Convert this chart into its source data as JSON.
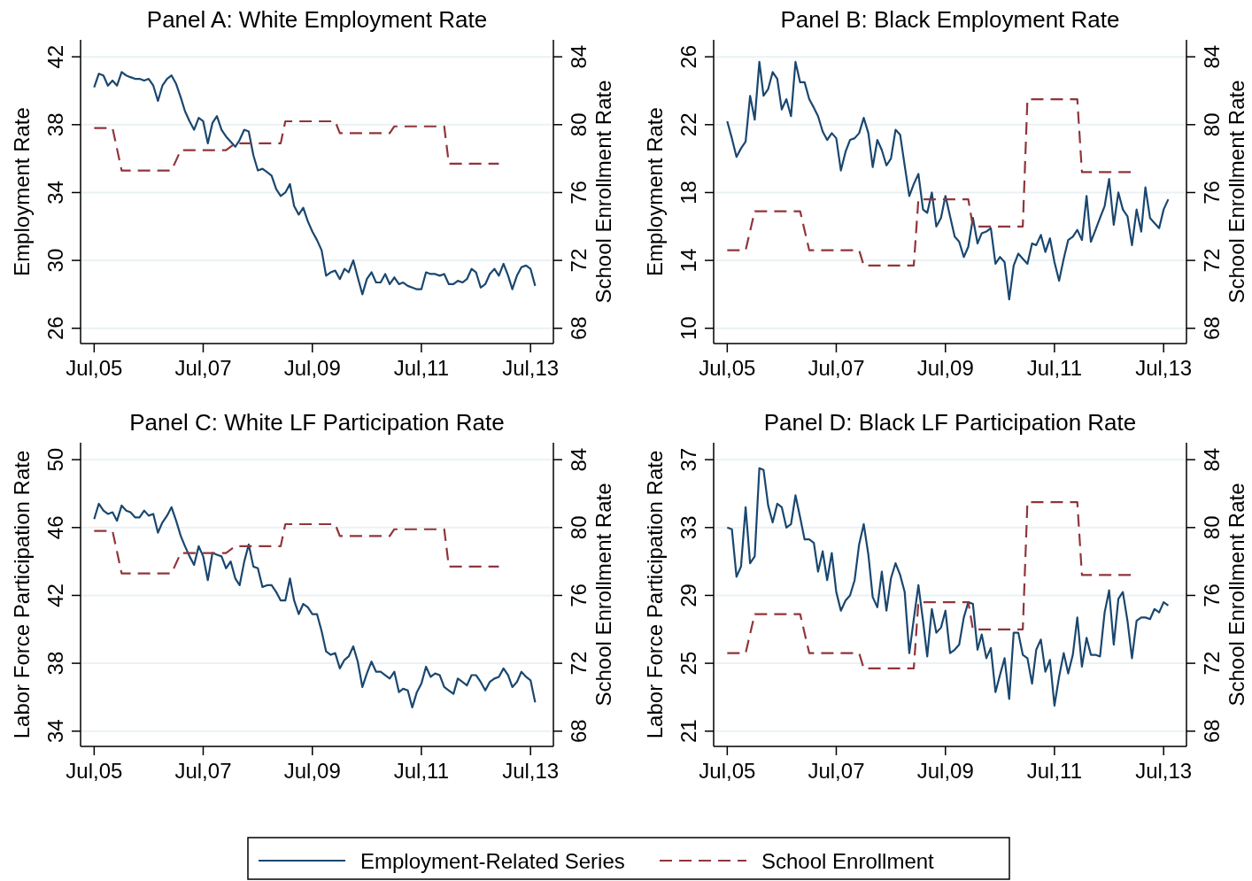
{
  "chart_data": [
    {
      "type": "line",
      "title": "Panel A: White Employment Rate",
      "ylabel": "Employment Rate",
      "y2label": "School Enrollment Rate",
      "xlim": [
        "2005-04",
        "2013-12"
      ],
      "xticks": [
        {
          "value": "2005-07",
          "label": "Jul,05"
        },
        {
          "value": "2007-07",
          "label": "Jul,07"
        },
        {
          "value": "2009-07",
          "label": "Jul,09"
        },
        {
          "value": "2011-07",
          "label": "Jul,11"
        },
        {
          "value": "2013-07",
          "label": "Jul,13"
        }
      ],
      "ylim": [
        25.1,
        43
      ],
      "yticks": [
        26,
        30,
        34,
        38,
        42
      ],
      "y2lim": [
        67.1,
        85
      ],
      "y2ticks": [
        68,
        72,
        76,
        80,
        84
      ],
      "grid": "y",
      "legend": "bottom",
      "x": [
        "2005-07",
        "2005-08",
        "2005-09",
        "2005-10",
        "2005-11",
        "2005-12",
        "2006-01",
        "2006-02",
        "2006-03",
        "2006-04",
        "2006-05",
        "2006-06",
        "2006-07",
        "2006-08",
        "2006-09",
        "2006-10",
        "2006-11",
        "2006-12",
        "2007-01",
        "2007-02",
        "2007-03",
        "2007-04",
        "2007-05",
        "2007-06",
        "2007-07",
        "2007-08",
        "2007-09",
        "2007-10",
        "2007-11",
        "2007-12",
        "2008-01",
        "2008-02",
        "2008-03",
        "2008-04",
        "2008-05",
        "2008-06",
        "2008-07",
        "2008-08",
        "2008-09",
        "2008-10",
        "2008-11",
        "2008-12",
        "2009-01",
        "2009-02",
        "2009-03",
        "2009-04",
        "2009-05",
        "2009-06",
        "2009-07",
        "2009-08",
        "2009-09",
        "2009-10",
        "2009-11",
        "2009-12",
        "2010-01",
        "2010-02",
        "2010-03",
        "2010-04",
        "2010-05",
        "2010-06",
        "2010-07",
        "2010-08",
        "2010-09",
        "2010-10",
        "2010-11",
        "2010-12",
        "2011-01",
        "2011-02",
        "2011-03",
        "2011-04",
        "2011-05",
        "2011-06",
        "2011-07",
        "2011-08",
        "2011-09",
        "2011-10",
        "2011-11",
        "2011-12",
        "2012-01",
        "2012-02",
        "2012-03",
        "2012-04",
        "2012-05",
        "2012-06",
        "2012-07",
        "2012-08",
        "2012-09",
        "2012-10",
        "2012-11",
        "2012-12",
        "2013-01",
        "2013-02",
        "2013-03",
        "2013-04",
        "2013-05",
        "2013-06",
        "2013-07",
        "2013-08"
      ],
      "series": [
        {
          "name": "Employment-Related Series",
          "color": "#1a476f",
          "values": [
            40.2,
            41.0,
            40.9,
            40.3,
            40.6,
            40.3,
            41.1,
            40.9,
            40.8,
            40.7,
            40.7,
            40.6,
            40.7,
            40.3,
            39.4,
            40.3,
            40.7,
            40.9,
            40.4,
            39.6,
            38.8,
            38.2,
            37.7,
            38.4,
            38.2,
            36.9,
            38.1,
            38.5,
            37.7,
            37.3,
            37.0,
            36.7,
            37.1,
            37.7,
            37.6,
            36.2,
            35.3,
            35.4,
            35.2,
            35.0,
            34.2,
            33.8,
            34.0,
            34.5,
            33.2,
            32.7,
            33.1,
            32.3,
            31.7,
            31.2,
            30.6,
            29.1,
            29.3,
            29.4,
            28.9,
            29.5,
            29.3,
            30.0,
            29.0,
            28.0,
            28.9,
            29.3,
            28.7,
            28.7,
            29.2,
            28.6,
            29.0,
            28.6,
            28.7,
            28.5,
            28.4,
            28.3,
            28.3,
            29.3,
            29.2,
            29.2,
            29.1,
            29.2,
            28.6,
            28.6,
            28.8,
            28.7,
            28.9,
            29.5,
            29.3,
            28.4,
            28.6,
            29.2,
            29.5,
            29.1,
            29.8,
            29.1,
            28.3,
            29.1,
            29.6,
            29.7,
            29.5,
            28.5
          ]
        },
        {
          "name": "School Enrollment",
          "color": "#90353b",
          "axis": "y2",
          "line_style": "dashed",
          "x": [
            "2005-07",
            "2005-11",
            "2006-01",
            "2006-12",
            "2007-02",
            "2007-12",
            "2008-02",
            "2008-12",
            "2009-01",
            "2009-12",
            "2010-01",
            "2010-12",
            "2011-01",
            "2011-12",
            "2012-01",
            "2012-12"
          ],
          "values": [
            79.8,
            79.8,
            77.3,
            77.3,
            78.5,
            78.5,
            78.9,
            78.9,
            80.2,
            80.2,
            79.5,
            79.5,
            79.9,
            79.9,
            77.7,
            77.7
          ]
        }
      ]
    },
    {
      "type": "line",
      "title": "Panel B: Black Employment Rate",
      "ylabel": "Employment Rate",
      "y2label": "School Enrollment Rate",
      "xlim": [
        "2005-04",
        "2013-12"
      ],
      "xticks": [
        {
          "value": "2005-07",
          "label": "Jul,05"
        },
        {
          "value": "2007-07",
          "label": "Jul,07"
        },
        {
          "value": "2009-07",
          "label": "Jul,09"
        },
        {
          "value": "2011-07",
          "label": "Jul,11"
        },
        {
          "value": "2013-07",
          "label": "Jul,13"
        }
      ],
      "ylim": [
        9.1,
        27
      ],
      "yticks": [
        10,
        14,
        18,
        22,
        26
      ],
      "y2lim": [
        67.1,
        85
      ],
      "y2ticks": [
        68,
        72,
        76,
        80,
        84
      ],
      "grid": "y",
      "x": [
        "2005-07",
        "2005-08",
        "2005-09",
        "2005-10",
        "2005-11",
        "2005-12",
        "2006-01",
        "2006-02",
        "2006-03",
        "2006-04",
        "2006-05",
        "2006-06",
        "2006-07",
        "2006-08",
        "2006-09",
        "2006-10",
        "2006-11",
        "2006-12",
        "2007-01",
        "2007-02",
        "2007-03",
        "2007-04",
        "2007-05",
        "2007-06",
        "2007-07",
        "2007-08",
        "2007-09",
        "2007-10",
        "2007-11",
        "2007-12",
        "2008-01",
        "2008-02",
        "2008-03",
        "2008-04",
        "2008-05",
        "2008-06",
        "2008-07",
        "2008-08",
        "2008-09",
        "2008-10",
        "2008-11",
        "2008-12",
        "2009-01",
        "2009-02",
        "2009-03",
        "2009-04",
        "2009-05",
        "2009-06",
        "2009-07",
        "2009-08",
        "2009-09",
        "2009-10",
        "2009-11",
        "2009-12",
        "2010-01",
        "2010-02",
        "2010-03",
        "2010-04",
        "2010-05",
        "2010-06",
        "2010-07",
        "2010-08",
        "2010-09",
        "2010-10",
        "2010-11",
        "2010-12",
        "2011-01",
        "2011-02",
        "2011-03",
        "2011-04",
        "2011-05",
        "2011-06",
        "2011-07",
        "2011-08",
        "2011-09",
        "2011-10",
        "2011-11",
        "2011-12",
        "2012-01",
        "2012-02",
        "2012-03",
        "2012-04",
        "2012-05",
        "2012-06",
        "2012-07",
        "2012-08",
        "2012-09",
        "2012-10",
        "2012-11",
        "2012-12",
        "2013-01",
        "2013-02",
        "2013-03",
        "2013-04",
        "2013-05",
        "2013-06",
        "2013-07",
        "2013-08"
      ],
      "series": [
        {
          "color": "#1a476f",
          "values": [
            22.2,
            21.2,
            20.1,
            20.6,
            21.0,
            23.7,
            22.3,
            25.7,
            23.7,
            24.1,
            25.1,
            24.7,
            22.9,
            23.5,
            22.5,
            25.7,
            24.5,
            24.5,
            23.5,
            23.0,
            22.5,
            21.6,
            21.1,
            21.5,
            21.2,
            19.3,
            20.4,
            21.1,
            21.2,
            21.5,
            22.4,
            21.5,
            19.5,
            21.1,
            20.5,
            19.6,
            20.0,
            21.7,
            21.4,
            19.6,
            17.8,
            18.5,
            19.1,
            17.0,
            16.8,
            18.0,
            16.0,
            16.5,
            17.8,
            16.6,
            15.4,
            15.1,
            14.2,
            14.8,
            16.5,
            15.0,
            15.6,
            15.7,
            15.9,
            13.8,
            14.2,
            13.9,
            11.7,
            13.7,
            14.4,
            14.1,
            13.8,
            15.0,
            14.9,
            15.5,
            14.5,
            15.3,
            13.9,
            12.8,
            14.1,
            15.2,
            15.4,
            15.8,
            15.2,
            17.8,
            15.1,
            15.8,
            16.5,
            17.2,
            18.8,
            16.1,
            18.0,
            17.0,
            16.6,
            14.9,
            17.0,
            15.7,
            18.3,
            16.5,
            16.2,
            15.9,
            17.0,
            17.6
          ]
        },
        {
          "color": "#90353b",
          "axis": "y2",
          "line_style": "dashed",
          "x": [
            "2005-07",
            "2005-11",
            "2006-01",
            "2006-11",
            "2007-01",
            "2007-12",
            "2008-01",
            "2008-12",
            "2009-01",
            "2009-12",
            "2010-01",
            "2010-12",
            "2011-01",
            "2011-12",
            "2012-01",
            "2012-12"
          ],
          "values": [
            72.6,
            72.6,
            74.9,
            74.9,
            72.6,
            72.6,
            71.7,
            71.7,
            75.6,
            75.6,
            74.0,
            74.0,
            81.5,
            81.5,
            77.2,
            77.2
          ]
        }
      ]
    },
    {
      "type": "line",
      "title": "Panel C: White LF Participation Rate",
      "ylabel": "Labor Force Participation Rate",
      "y2label": "School Enrollment Rate",
      "xlim": [
        "2005-04",
        "2013-12"
      ],
      "xticks": [
        {
          "value": "2005-07",
          "label": "Jul,05"
        },
        {
          "value": "2007-07",
          "label": "Jul,07"
        },
        {
          "value": "2009-07",
          "label": "Jul,09"
        },
        {
          "value": "2011-07",
          "label": "Jul,11"
        },
        {
          "value": "2013-07",
          "label": "Jul,13"
        }
      ],
      "ylim": [
        33.1,
        51
      ],
      "yticks": [
        34,
        38,
        42,
        46,
        50
      ],
      "y2lim": [
        67.1,
        85
      ],
      "y2ticks": [
        68,
        72,
        76,
        80,
        84
      ],
      "grid": "y",
      "x": [
        "2005-07",
        "2005-08",
        "2005-09",
        "2005-10",
        "2005-11",
        "2005-12",
        "2006-01",
        "2006-02",
        "2006-03",
        "2006-04",
        "2006-05",
        "2006-06",
        "2006-07",
        "2006-08",
        "2006-09",
        "2006-10",
        "2006-11",
        "2006-12",
        "2007-01",
        "2007-02",
        "2007-03",
        "2007-04",
        "2007-05",
        "2007-06",
        "2007-07",
        "2007-08",
        "2007-09",
        "2007-10",
        "2007-11",
        "2007-12",
        "2008-01",
        "2008-02",
        "2008-03",
        "2008-04",
        "2008-05",
        "2008-06",
        "2008-07",
        "2008-08",
        "2008-09",
        "2008-10",
        "2008-11",
        "2008-12",
        "2009-01",
        "2009-02",
        "2009-03",
        "2009-04",
        "2009-05",
        "2009-06",
        "2009-07",
        "2009-08",
        "2009-09",
        "2009-10",
        "2009-11",
        "2009-12",
        "2010-01",
        "2010-02",
        "2010-03",
        "2010-04",
        "2010-05",
        "2010-06",
        "2010-07",
        "2010-08",
        "2010-09",
        "2010-10",
        "2010-11",
        "2010-12",
        "2011-01",
        "2011-02",
        "2011-03",
        "2011-04",
        "2011-05",
        "2011-06",
        "2011-07",
        "2011-08",
        "2011-09",
        "2011-10",
        "2011-11",
        "2011-12",
        "2012-01",
        "2012-02",
        "2012-03",
        "2012-04",
        "2012-05",
        "2012-06",
        "2012-07",
        "2012-08",
        "2012-09",
        "2012-10",
        "2012-11",
        "2012-12",
        "2013-01",
        "2013-02",
        "2013-03",
        "2013-04",
        "2013-05",
        "2013-06",
        "2013-07",
        "2013-08"
      ],
      "series": [
        {
          "color": "#1a476f",
          "values": [
            46.5,
            47.4,
            47.0,
            46.8,
            46.9,
            46.4,
            47.3,
            47.0,
            46.9,
            46.6,
            46.6,
            47.0,
            46.7,
            46.8,
            45.7,
            46.3,
            46.7,
            47.2,
            46.4,
            45.5,
            44.9,
            44.3,
            43.8,
            44.9,
            44.3,
            42.9,
            44.5,
            44.4,
            44.3,
            43.6,
            44.0,
            43.0,
            42.6,
            44.0,
            45.0,
            43.7,
            43.6,
            42.5,
            42.6,
            42.6,
            42.2,
            41.7,
            41.7,
            43.0,
            41.7,
            40.9,
            41.5,
            41.3,
            40.9,
            40.9,
            39.9,
            38.7,
            38.5,
            38.6,
            37.7,
            38.2,
            38.4,
            39.0,
            38.1,
            36.6,
            37.4,
            38.1,
            37.5,
            37.5,
            37.3,
            37.1,
            37.5,
            36.3,
            36.5,
            36.4,
            35.4,
            36.3,
            36.8,
            37.8,
            37.2,
            37.4,
            37.3,
            36.6,
            36.4,
            36.2,
            37.1,
            36.9,
            36.7,
            37.3,
            37.3,
            36.9,
            36.4,
            36.9,
            37.1,
            37.2,
            37.7,
            37.3,
            36.6,
            36.9,
            37.5,
            37.2,
            37.0,
            35.7
          ]
        },
        {
          "color": "#90353b",
          "axis": "y2",
          "line_style": "dashed",
          "x": [
            "2005-07",
            "2005-11",
            "2006-01",
            "2006-12",
            "2007-02",
            "2007-12",
            "2008-02",
            "2008-12",
            "2009-01",
            "2009-12",
            "2010-01",
            "2010-12",
            "2011-01",
            "2011-12",
            "2012-01",
            "2012-12"
          ],
          "values": [
            79.8,
            79.8,
            77.3,
            77.3,
            78.5,
            78.5,
            78.9,
            78.9,
            80.2,
            80.2,
            79.5,
            79.5,
            79.9,
            79.9,
            77.7,
            77.7
          ]
        }
      ]
    },
    {
      "type": "line",
      "title": "Panel D: Black LF Participation Rate",
      "ylabel": "Labor Force Participation Rate",
      "y2label": "School Enrollment Rate",
      "xlim": [
        "2005-04",
        "2013-12"
      ],
      "xticks": [
        {
          "value": "2005-07",
          "label": "Jul,05"
        },
        {
          "value": "2007-07",
          "label": "Jul,07"
        },
        {
          "value": "2009-07",
          "label": "Jul,09"
        },
        {
          "value": "2011-07",
          "label": "Jul,11"
        },
        {
          "value": "2013-07",
          "label": "Jul,13"
        }
      ],
      "ylim": [
        20.1,
        38
      ],
      "yticks": [
        21,
        25,
        29,
        33,
        37
      ],
      "y2lim": [
        67.1,
        85
      ],
      "y2ticks": [
        68,
        72,
        76,
        80,
        84
      ],
      "grid": "y",
      "x": [
        "2005-07",
        "2005-08",
        "2005-09",
        "2005-10",
        "2005-11",
        "2005-12",
        "2006-01",
        "2006-02",
        "2006-03",
        "2006-04",
        "2006-05",
        "2006-06",
        "2006-07",
        "2006-08",
        "2006-09",
        "2006-10",
        "2006-11",
        "2006-12",
        "2007-01",
        "2007-02",
        "2007-03",
        "2007-04",
        "2007-05",
        "2007-06",
        "2007-07",
        "2007-08",
        "2007-09",
        "2007-10",
        "2007-11",
        "2007-12",
        "2008-01",
        "2008-02",
        "2008-03",
        "2008-04",
        "2008-05",
        "2008-06",
        "2008-07",
        "2008-08",
        "2008-09",
        "2008-10",
        "2008-11",
        "2008-12",
        "2009-01",
        "2009-02",
        "2009-03",
        "2009-04",
        "2009-05",
        "2009-06",
        "2009-07",
        "2009-08",
        "2009-09",
        "2009-10",
        "2009-11",
        "2009-12",
        "2010-01",
        "2010-02",
        "2010-03",
        "2010-04",
        "2010-05",
        "2010-06",
        "2010-07",
        "2010-08",
        "2010-09",
        "2010-10",
        "2010-11",
        "2010-12",
        "2011-01",
        "2011-02",
        "2011-03",
        "2011-04",
        "2011-05",
        "2011-06",
        "2011-07",
        "2011-08",
        "2011-09",
        "2011-10",
        "2011-11",
        "2011-12",
        "2012-01",
        "2012-02",
        "2012-03",
        "2012-04",
        "2012-05",
        "2012-06",
        "2012-07",
        "2012-08",
        "2012-09",
        "2012-10",
        "2012-11",
        "2012-12",
        "2013-01",
        "2013-02",
        "2013-03",
        "2013-04",
        "2013-05",
        "2013-06",
        "2013-07",
        "2013-08"
      ],
      "series": [
        {
          "color": "#1a476f",
          "values": [
            33.0,
            32.9,
            30.1,
            30.7,
            34.2,
            30.9,
            31.3,
            36.5,
            36.4,
            34.3,
            33.3,
            34.4,
            34.2,
            33.0,
            33.2,
            34.9,
            33.6,
            32.3,
            32.3,
            32.1,
            30.4,
            31.6,
            29.9,
            31.5,
            29.2,
            28.1,
            28.7,
            29.0,
            29.9,
            32.0,
            33.2,
            31.4,
            28.9,
            28.3,
            30.4,
            28.1,
            30.0,
            30.9,
            30.2,
            29.2,
            25.6,
            27.6,
            29.6,
            27.5,
            25.4,
            28.2,
            26.8,
            27.1,
            28.1,
            25.6,
            25.8,
            26.1,
            27.7,
            28.6,
            28.5,
            25.8,
            26.7,
            25.3,
            25.9,
            23.3,
            24.3,
            25.3,
            22.9,
            26.8,
            26.8,
            25.5,
            25.3,
            23.8,
            25.8,
            26.4,
            24.5,
            25.2,
            22.5,
            24.2,
            25.6,
            24.4,
            25.5,
            27.7,
            24.8,
            26.5,
            25.5,
            25.5,
            25.4,
            28.0,
            29.3,
            26.1,
            28.8,
            29.2,
            27.5,
            25.3,
            27.5,
            27.7,
            27.7,
            27.6,
            28.2,
            28.0,
            28.6,
            28.4
          ]
        },
        {
          "color": "#90353b",
          "axis": "y2",
          "line_style": "dashed",
          "x": [
            "2005-07",
            "2005-11",
            "2006-01",
            "2006-11",
            "2007-01",
            "2007-12",
            "2008-01",
            "2008-12",
            "2009-01",
            "2009-12",
            "2010-01",
            "2010-12",
            "2011-01",
            "2011-12",
            "2012-01",
            "2012-12"
          ],
          "values": [
            72.6,
            72.6,
            74.9,
            74.9,
            72.6,
            72.6,
            71.7,
            71.7,
            75.6,
            75.6,
            74.0,
            74.0,
            81.5,
            81.5,
            77.2,
            77.2
          ]
        }
      ]
    }
  ]
}
